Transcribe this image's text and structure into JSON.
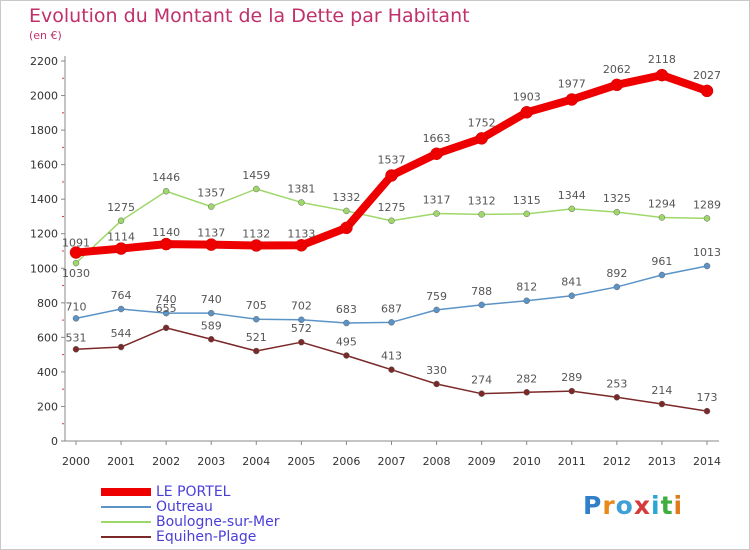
{
  "title": "Evolution du Montant de la Dette par Habitant",
  "subtitle": "(en €)",
  "logo": {
    "text": "Proxiti",
    "colors": [
      "#2f7fc9",
      "#e8891a",
      "#3fa0d8",
      "#d63a3a",
      "#2aa6d6",
      "#3fae3f",
      "#e07a1a"
    ]
  },
  "chart_data": {
    "type": "line",
    "x": [
      "2000",
      "2001",
      "2002",
      "2003",
      "2004",
      "2005",
      "2006",
      "2007",
      "2008",
      "2009",
      "2010",
      "2011",
      "2012",
      "2013",
      "2014"
    ],
    "ylim": [
      0,
      2200
    ],
    "yticks": [
      "0",
      "200",
      "400",
      "600",
      "800",
      "1000",
      "1200",
      "1400",
      "1600",
      "1800",
      "2000",
      "2200"
    ],
    "grid": false,
    "legend_position": "bottom-left",
    "series": [
      {
        "name": "LE PORTEL",
        "color": "#ee0000",
        "values": [
          1091,
          1114,
          1140,
          1137,
          1132,
          1133,
          1234,
          1537,
          1663,
          1752,
          1903,
          1977,
          2062,
          2118,
          2027
        ],
        "labels": [
          "1091",
          "1114",
          "1140",
          "1137",
          "1132",
          "1133",
          "",
          "1537",
          "1663",
          "1752",
          "1903",
          "1977",
          "2062",
          "2118",
          "2027"
        ]
      },
      {
        "name": "Outreau",
        "color": "#5b93c6",
        "values": [
          710,
          764,
          740,
          740,
          705,
          702,
          683,
          687,
          759,
          788,
          812,
          841,
          892,
          961,
          1013
        ],
        "labels": [
          "710",
          "764",
          "740",
          "740",
          "705",
          "702",
          "683",
          "687",
          "759",
          "788",
          "812",
          "841",
          "892",
          "961",
          "1013"
        ]
      },
      {
        "name": "Boulogne-sur-Mer",
        "color": "#9fd86a",
        "values": [
          1030,
          1275,
          1446,
          1357,
          1459,
          1381,
          1332,
          1275,
          1317,
          1312,
          1315,
          1344,
          1325,
          1294,
          1289
        ],
        "labels": [
          "1030",
          "1275",
          "1446",
          "1357",
          "1459",
          "1381",
          "1332",
          "1275",
          "1317",
          "1312",
          "1315",
          "1344",
          "1325",
          "1294",
          "1289"
        ]
      },
      {
        "name": "Equihen-Plage",
        "color": "#7b2828",
        "values": [
          531,
          544,
          655,
          589,
          521,
          572,
          495,
          413,
          330,
          274,
          282,
          289,
          253,
          214,
          173
        ],
        "labels": [
          "531",
          "544",
          "655",
          "589",
          "521",
          "572",
          "495",
          "413",
          "330",
          "274",
          "282",
          "289",
          "253",
          "214",
          "173"
        ]
      }
    ]
  }
}
